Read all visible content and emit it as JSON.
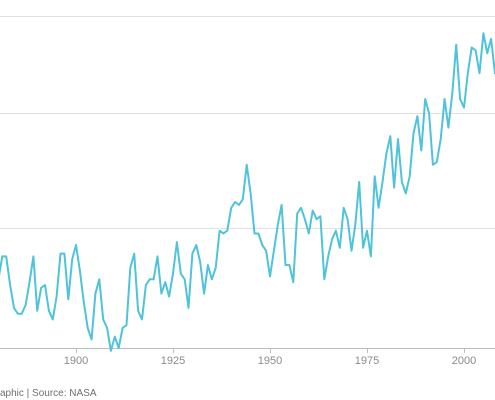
{
  "chart_data": {
    "type": "line",
    "title": "",
    "xlabel": "",
    "ylabel": "",
    "x_tick_labels": [
      "1900",
      "1925",
      "1950",
      "1975",
      "2000"
    ],
    "x_ticks": [
      1900,
      1925,
      1950,
      1975,
      2000
    ],
    "xlim": [
      1880.4,
      2008
    ],
    "ylim": [
      -0.42,
      0.74
    ],
    "gridlines_y": [
      0.4,
      0.0
    ],
    "grid": "horizontal",
    "legend": "none",
    "line_color": "#4fc3d9",
    "grid_color": "#e0e0e0",
    "axis_color": "#bdbdbd",
    "series": [
      {
        "x": [
          1880,
          1881,
          1882,
          1883,
          1884,
          1885,
          1886,
          1887,
          1888,
          1889,
          1890,
          1891,
          1892,
          1893,
          1894,
          1895,
          1896,
          1897,
          1898,
          1899,
          1900,
          1901,
          1902,
          1903,
          1904,
          1905,
          1906,
          1907,
          1908,
          1909,
          1910,
          1911,
          1912,
          1913,
          1914,
          1915,
          1916,
          1917,
          1918,
          1919,
          1920,
          1921,
          1922,
          1923,
          1924,
          1925,
          1926,
          1927,
          1928,
          1929,
          1930,
          1931,
          1932,
          1933,
          1934,
          1935,
          1936,
          1937,
          1938,
          1939,
          1940,
          1941,
          1942,
          1943,
          1944,
          1945,
          1946,
          1947,
          1948,
          1949,
          1950,
          1951,
          1952,
          1953,
          1954,
          1955,
          1956,
          1957,
          1958,
          1959,
          1960,
          1961,
          1962,
          1963,
          1964,
          1965,
          1966,
          1967,
          1968,
          1969,
          1970,
          1971,
          1972,
          1973,
          1974,
          1975,
          1976,
          1977,
          1978,
          1979,
          1980,
          1981,
          1982,
          1983,
          1984,
          1985,
          1986,
          1987,
          1988,
          1989,
          1990,
          1991,
          1992,
          1993,
          1994,
          1995,
          1996,
          1997,
          1998,
          1999,
          2000,
          2001,
          2002,
          2003,
          2004,
          2005,
          2006,
          2007,
          2008
        ],
        "values": [
          -0.18,
          -0.1,
          -0.1,
          -0.2,
          -0.28,
          -0.3,
          -0.3,
          -0.27,
          -0.19,
          -0.1,
          -0.29,
          -0.21,
          -0.2,
          -0.29,
          -0.32,
          -0.24,
          -0.09,
          -0.09,
          -0.25,
          -0.11,
          -0.06,
          -0.15,
          -0.26,
          -0.35,
          -0.39,
          -0.23,
          -0.18,
          -0.32,
          -0.35,
          -0.43,
          -0.38,
          -0.42,
          -0.35,
          -0.34,
          -0.14,
          -0.09,
          -0.29,
          -0.32,
          -0.2,
          -0.18,
          -0.18,
          -0.1,
          -0.23,
          -0.19,
          -0.24,
          -0.16,
          -0.05,
          -0.16,
          -0.18,
          -0.28,
          -0.09,
          -0.06,
          -0.12,
          -0.23,
          -0.13,
          -0.18,
          -0.14,
          -0.01,
          -0.02,
          -0.01,
          0.07,
          0.09,
          0.08,
          0.1,
          0.22,
          0.12,
          -0.02,
          -0.02,
          -0.06,
          -0.08,
          -0.17,
          -0.08,
          0.01,
          0.08,
          -0.13,
          -0.13,
          -0.19,
          0.05,
          0.07,
          0.03,
          -0.02,
          0.06,
          0.03,
          0.04,
          -0.18,
          -0.1,
          -0.04,
          -0.01,
          -0.07,
          0.07,
          0.03,
          -0.08,
          0.01,
          0.16,
          -0.07,
          -0.01,
          -0.1,
          0.18,
          0.07,
          0.16,
          0.26,
          0.32,
          0.14,
          0.31,
          0.16,
          0.12,
          0.18,
          0.33,
          0.39,
          0.27,
          0.45,
          0.4,
          0.22,
          0.23,
          0.31,
          0.45,
          0.35,
          0.47,
          0.64,
          0.45,
          0.42,
          0.54,
          0.63,
          0.62,
          0.54,
          0.68,
          0.61,
          0.66,
          0.54
        ]
      }
    ]
  },
  "footer": {
    "text": "aphic | Source: NASA"
  }
}
